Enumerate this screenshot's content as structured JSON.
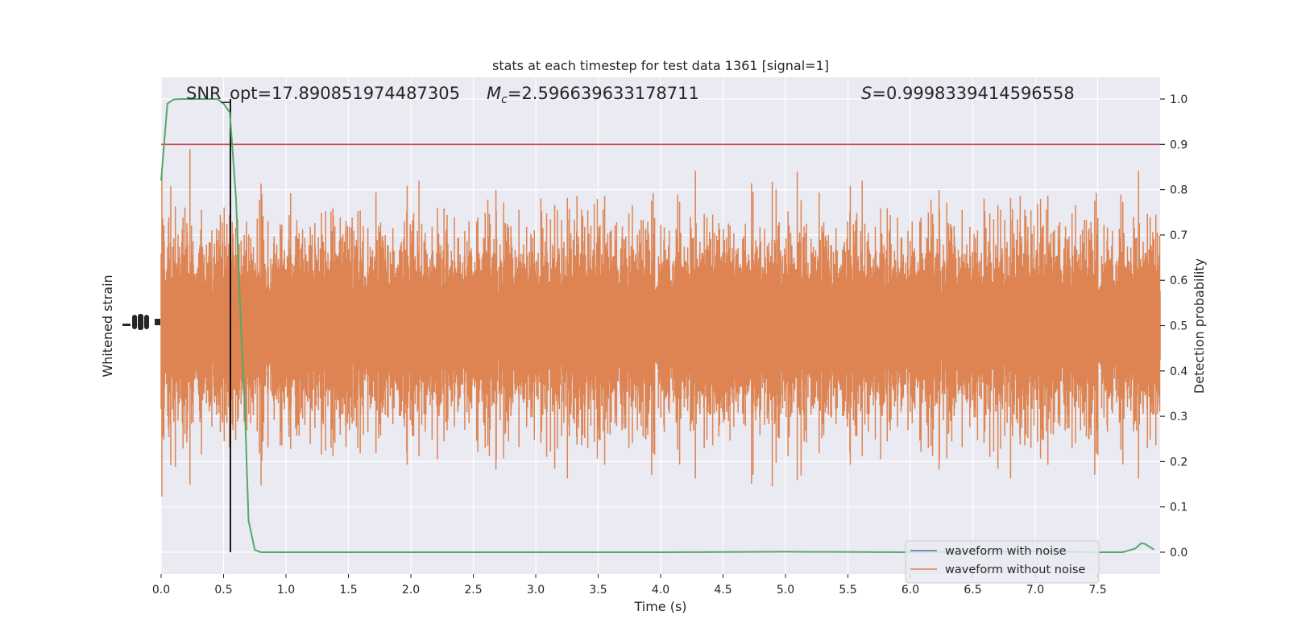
{
  "chart_data": {
    "type": "line",
    "title": "stats at each timestep for test data 1361 [signal=1]",
    "xlabel": "Time (s)",
    "ylabel_left": "Whitened strain",
    "ylabel_right": "Detection probability",
    "xlim": [
      0.0,
      8.0
    ],
    "ylim_right": [
      -0.048,
      1.048
    ],
    "x_ticks": [
      "0.0",
      "0.5",
      "1.0",
      "1.5",
      "2.0",
      "2.5",
      "3.0",
      "3.5",
      "4.0",
      "4.5",
      "5.0",
      "5.5",
      "6.0",
      "6.5",
      "7.0",
      "7.5"
    ],
    "right_ticks": [
      "0.0",
      "0.1",
      "0.2",
      "0.3",
      "0.4",
      "0.5",
      "0.6",
      "0.7",
      "0.8",
      "0.9",
      "1.0"
    ],
    "grid": true,
    "legend_position": "lower-right",
    "annotations": {
      "snr": "SNR_opt=17.890851974487305",
      "mc_symbol": "M",
      "mc_subscript": "c",
      "mc_value": "=2.596639633178711",
      "s_symbol": "S",
      "s_value": "=0.9998339414596558"
    },
    "threshold": 0.9,
    "merger_time": 0.555,
    "series": [
      {
        "name": "waveform with noise",
        "color": "#4c72b0",
        "kind": "strain"
      },
      {
        "name": "waveform without noise",
        "color": "#dd8452",
        "kind": "strain"
      },
      {
        "color": "#55a868",
        "kind": "probability",
        "x": [
          0.0,
          0.05,
          0.1,
          0.15,
          0.2,
          0.3,
          0.4,
          0.45,
          0.5,
          0.55,
          0.6,
          0.63,
          0.67,
          0.7,
          0.75,
          0.8,
          1.0,
          2.0,
          3.0,
          4.0,
          5.0,
          6.0,
          7.0,
          7.5,
          7.7,
          7.8,
          7.85,
          7.88,
          7.95
        ],
        "y": [
          0.82,
          0.99,
          0.999,
          1.0,
          1.0,
          1.0,
          1.0,
          1.0,
          0.99,
          0.97,
          0.78,
          0.56,
          0.32,
          0.07,
          0.005,
          0.0,
          0.0,
          0.0,
          0.0,
          0.0,
          0.001,
          0.0,
          0.002,
          0.0,
          0.0,
          0.008,
          0.02,
          0.018,
          0.006
        ]
      }
    ]
  }
}
